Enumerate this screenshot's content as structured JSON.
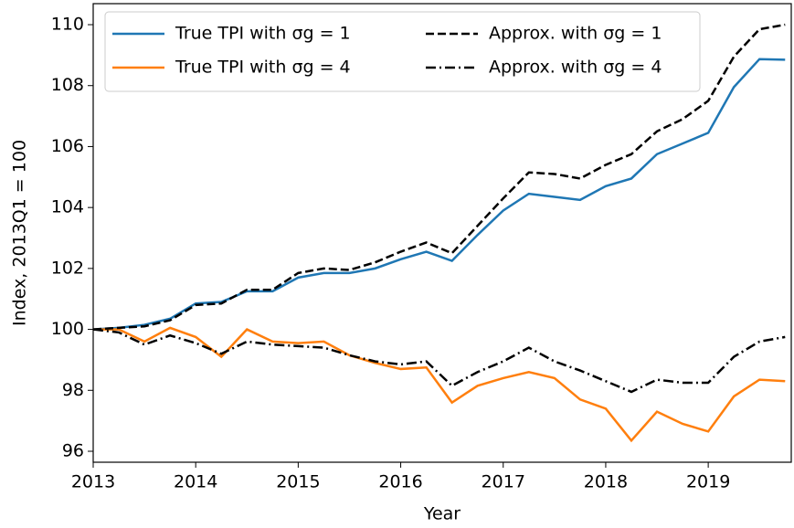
{
  "chart_data": {
    "type": "line",
    "x_label": "Year",
    "y_label": "Index, 2013Q1 = 100",
    "x": [
      2013,
      2013.25,
      2013.5,
      2013.75,
      2014,
      2014.25,
      2014.5,
      2014.75,
      2015,
      2015.25,
      2015.5,
      2015.75,
      2016,
      2016.25,
      2016.5,
      2016.75,
      2017,
      2017.25,
      2017.5,
      2017.75,
      2018,
      2018.25,
      2018.5,
      2018.75,
      2019,
      2019.25,
      2019.5,
      2019.75
    ],
    "series": [
      {
        "name": "True TPI with σg = 1",
        "color": "#1f77b4",
        "dash": "solid",
        "values": [
          100,
          100.05,
          100.15,
          100.35,
          100.85,
          100.9,
          101.25,
          101.25,
          101.7,
          101.85,
          101.85,
          102.0,
          102.3,
          102.55,
          102.25,
          103.1,
          103.9,
          104.45,
          104.35,
          104.25,
          104.7,
          104.95,
          105.75,
          106.1,
          106.45,
          107.95,
          108.87,
          108.85
        ]
      },
      {
        "name": "True TPI with σg = 4",
        "color": "#ff7f0e",
        "dash": "solid",
        "values": [
          100,
          100.0,
          99.6,
          100.05,
          99.75,
          99.1,
          100.0,
          99.6,
          99.55,
          99.6,
          99.15,
          98.9,
          98.7,
          98.75,
          97.6,
          98.15,
          98.4,
          98.6,
          98.4,
          97.7,
          97.4,
          96.35,
          97.3,
          96.9,
          96.65,
          97.8,
          98.35,
          98.3
        ]
      },
      {
        "name": "Approx. with σg = 1",
        "color": "#000000",
        "dash": "dashed",
        "values": [
          100,
          100.05,
          100.1,
          100.3,
          100.8,
          100.85,
          101.3,
          101.3,
          101.85,
          102.0,
          101.95,
          102.2,
          102.55,
          102.85,
          102.5,
          103.4,
          104.3,
          105.15,
          105.1,
          104.95,
          105.4,
          105.75,
          106.5,
          106.9,
          107.5,
          108.95,
          109.85,
          110.0
        ]
      },
      {
        "name": "Approx. with σg = 4",
        "color": "#000000",
        "dash": "dashdot",
        "values": [
          100,
          99.9,
          99.5,
          99.8,
          99.55,
          99.2,
          99.6,
          99.5,
          99.45,
          99.4,
          99.15,
          98.95,
          98.85,
          98.95,
          98.15,
          98.6,
          98.95,
          99.4,
          98.95,
          98.65,
          98.3,
          97.95,
          98.35,
          98.25,
          98.25,
          99.1,
          99.6,
          99.75
        ]
      }
    ],
    "xlim": [
      2013,
      2019.81
    ],
    "ylim": [
      95.64,
      110.69
    ],
    "xticks": [
      2013,
      2014,
      2015,
      2016,
      2017,
      2018,
      2019
    ],
    "yticks": [
      96,
      98,
      100,
      102,
      104,
      106,
      108,
      110
    ],
    "legend": "upper left",
    "legend_columns": 2,
    "grid": false
  }
}
